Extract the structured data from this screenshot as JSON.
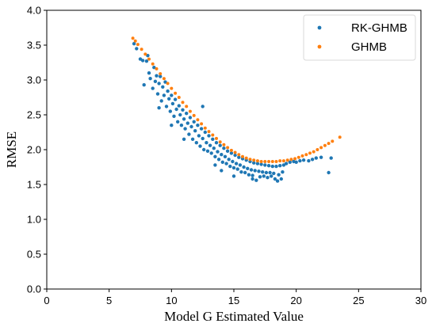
{
  "chart_data": {
    "type": "scatter",
    "title": "",
    "xlabel": "Model G Estimated Value",
    "ylabel": "RMSE",
    "xlim": [
      0,
      30
    ],
    "ylim": [
      0,
      4.0
    ],
    "xticks": [
      "0",
      "5",
      "10",
      "15",
      "20",
      "25",
      "30"
    ],
    "yticks": [
      "0.0",
      "0.5",
      "1.0",
      "1.5",
      "2.0",
      "2.5",
      "3.0",
      "3.5",
      "4.0"
    ],
    "grid": false,
    "legend_position": "top-right",
    "series": [
      {
        "name": "RK-GHMB",
        "color": "#1f77b4",
        "points": [
          [
            7.0,
            3.52
          ],
          [
            7.2,
            3.45
          ],
          [
            7.5,
            3.3
          ],
          [
            7.7,
            3.28
          ],
          [
            7.8,
            2.93
          ],
          [
            8.0,
            3.27
          ],
          [
            8.1,
            3.35
          ],
          [
            8.2,
            3.1
          ],
          [
            8.3,
            3.02
          ],
          [
            8.5,
            2.88
          ],
          [
            8.6,
            3.18
          ],
          [
            8.7,
            2.98
          ],
          [
            8.8,
            3.06
          ],
          [
            8.9,
            2.8
          ],
          [
            9.0,
            2.95
          ],
          [
            9.1,
            3.05
          ],
          [
            9.2,
            2.7
          ],
          [
            9.3,
            2.9
          ],
          [
            9.4,
            2.78
          ],
          [
            9.5,
            2.97
          ],
          [
            9.6,
            2.62
          ],
          [
            9.7,
            2.84
          ],
          [
            9.8,
            2.73
          ],
          [
            9.9,
            2.55
          ],
          [
            10.0,
            2.78
          ],
          [
            10.1,
            2.66
          ],
          [
            10.2,
            2.48
          ],
          [
            10.3,
            2.72
          ],
          [
            10.4,
            2.58
          ],
          [
            10.5,
            2.4
          ],
          [
            10.6,
            2.63
          ],
          [
            10.7,
            2.5
          ],
          [
            10.8,
            2.35
          ],
          [
            10.9,
            2.57
          ],
          [
            11.0,
            2.44
          ],
          [
            11.1,
            2.3
          ],
          [
            11.2,
            2.52
          ],
          [
            11.3,
            2.38
          ],
          [
            11.4,
            2.22
          ],
          [
            11.5,
            2.46
          ],
          [
            11.6,
            2.33
          ],
          [
            11.7,
            2.15
          ],
          [
            11.8,
            2.4
          ],
          [
            11.9,
            2.27
          ],
          [
            12.0,
            2.1
          ],
          [
            12.1,
            2.35
          ],
          [
            12.2,
            2.2
          ],
          [
            12.3,
            2.05
          ],
          [
            12.4,
            2.3
          ],
          [
            12.5,
            2.16
          ],
          [
            12.6,
            2.0
          ],
          [
            12.7,
            2.25
          ],
          [
            12.8,
            2.1
          ],
          [
            12.9,
            1.98
          ],
          [
            13.0,
            2.2
          ],
          [
            13.1,
            2.06
          ],
          [
            13.2,
            1.95
          ],
          [
            13.3,
            2.15
          ],
          [
            13.4,
            2.02
          ],
          [
            13.5,
            1.9
          ],
          [
            13.6,
            2.1
          ],
          [
            13.7,
            1.97
          ],
          [
            13.8,
            1.86
          ],
          [
            13.9,
            2.06
          ],
          [
            14.0,
            1.93
          ],
          [
            14.1,
            1.82
          ],
          [
            14.2,
            2.02
          ],
          [
            14.3,
            1.9
          ],
          [
            14.4,
            1.8
          ],
          [
            14.5,
            1.98
          ],
          [
            14.6,
            1.86
          ],
          [
            14.7,
            1.76
          ],
          [
            14.8,
            1.95
          ],
          [
            14.9,
            1.83
          ],
          [
            15.0,
            1.74
          ],
          [
            15.1,
            1.92
          ],
          [
            15.2,
            1.8
          ],
          [
            15.3,
            1.72
          ],
          [
            15.4,
            1.89
          ],
          [
            15.5,
            1.78
          ],
          [
            15.6,
            1.68
          ],
          [
            15.7,
            1.87
          ],
          [
            15.8,
            1.75
          ],
          [
            15.9,
            1.67
          ],
          [
            16.0,
            1.85
          ],
          [
            16.1,
            1.73
          ],
          [
            16.2,
            1.64
          ],
          [
            16.3,
            1.83
          ],
          [
            16.4,
            1.71
          ],
          [
            16.5,
            1.63
          ],
          [
            16.6,
            1.81
          ],
          [
            16.7,
            1.7
          ],
          [
            16.8,
            1.56
          ],
          [
            16.9,
            1.8
          ],
          [
            17.0,
            1.69
          ],
          [
            17.1,
            1.61
          ],
          [
            17.2,
            1.79
          ],
          [
            17.3,
            1.68
          ],
          [
            17.4,
            1.62
          ],
          [
            17.5,
            1.78
          ],
          [
            17.6,
            1.67
          ],
          [
            17.7,
            1.6
          ],
          [
            17.8,
            1.77
          ],
          [
            17.9,
            1.67
          ],
          [
            18.0,
            1.62
          ],
          [
            18.1,
            1.76
          ],
          [
            18.2,
            1.66
          ],
          [
            18.3,
            1.58
          ],
          [
            18.4,
            1.76
          ],
          [
            18.5,
            1.55
          ],
          [
            18.6,
            1.64
          ],
          [
            18.7,
            1.77
          ],
          [
            18.8,
            1.58
          ],
          [
            18.9,
            1.68
          ],
          [
            19.0,
            1.78
          ],
          [
            19.2,
            1.8
          ],
          [
            19.5,
            1.82
          ],
          [
            19.8,
            1.83
          ],
          [
            20.0,
            1.82
          ],
          [
            20.3,
            1.84
          ],
          [
            20.6,
            1.85
          ],
          [
            21.0,
            1.84
          ],
          [
            21.3,
            1.86
          ],
          [
            21.6,
            1.88
          ],
          [
            22.0,
            1.89
          ],
          [
            22.6,
            1.67
          ],
          [
            22.8,
            1.88
          ],
          [
            12.5,
            2.62
          ],
          [
            10.0,
            2.35
          ],
          [
            9.0,
            2.6
          ],
          [
            11.0,
            2.15
          ],
          [
            13.5,
            1.78
          ],
          [
            15.0,
            1.62
          ],
          [
            16.5,
            1.58
          ],
          [
            14.0,
            1.7
          ]
        ]
      },
      {
        "name": "GHMB",
        "color": "#ff7f0e",
        "points": [
          [
            6.9,
            3.6
          ],
          [
            7.1,
            3.56
          ],
          [
            7.3,
            3.51
          ],
          [
            7.6,
            3.44
          ],
          [
            7.9,
            3.37
          ],
          [
            8.2,
            3.3
          ],
          [
            8.5,
            3.23
          ],
          [
            8.8,
            3.16
          ],
          [
            9.1,
            3.09
          ],
          [
            9.4,
            3.02
          ],
          [
            9.7,
            2.95
          ],
          [
            10.0,
            2.88
          ],
          [
            10.3,
            2.81
          ],
          [
            10.6,
            2.75
          ],
          [
            10.9,
            2.68
          ],
          [
            11.2,
            2.62
          ],
          [
            11.5,
            2.55
          ],
          [
            11.8,
            2.49
          ],
          [
            12.1,
            2.43
          ],
          [
            12.4,
            2.37
          ],
          [
            12.7,
            2.31
          ],
          [
            13.0,
            2.26
          ],
          [
            13.3,
            2.21
          ],
          [
            13.6,
            2.16
          ],
          [
            13.9,
            2.11
          ],
          [
            14.2,
            2.07
          ],
          [
            14.5,
            2.03
          ],
          [
            14.8,
            1.99
          ],
          [
            15.1,
            1.96
          ],
          [
            15.4,
            1.93
          ],
          [
            15.7,
            1.9
          ],
          [
            16.0,
            1.88
          ],
          [
            16.3,
            1.86
          ],
          [
            16.6,
            1.85
          ],
          [
            16.9,
            1.84
          ],
          [
            17.2,
            1.83
          ],
          [
            17.5,
            1.83
          ],
          [
            17.8,
            1.83
          ],
          [
            18.1,
            1.83
          ],
          [
            18.4,
            1.83
          ],
          [
            18.7,
            1.84
          ],
          [
            19.0,
            1.84
          ],
          [
            19.3,
            1.85
          ],
          [
            19.6,
            1.86
          ],
          [
            19.9,
            1.87
          ],
          [
            20.2,
            1.89
          ],
          [
            20.5,
            1.91
          ],
          [
            20.8,
            1.93
          ],
          [
            21.1,
            1.95
          ],
          [
            21.4,
            1.97
          ],
          [
            21.7,
            2.0
          ],
          [
            22.0,
            2.03
          ],
          [
            22.3,
            2.06
          ],
          [
            22.6,
            2.09
          ],
          [
            22.9,
            2.12
          ],
          [
            23.5,
            2.18
          ]
        ]
      }
    ]
  }
}
